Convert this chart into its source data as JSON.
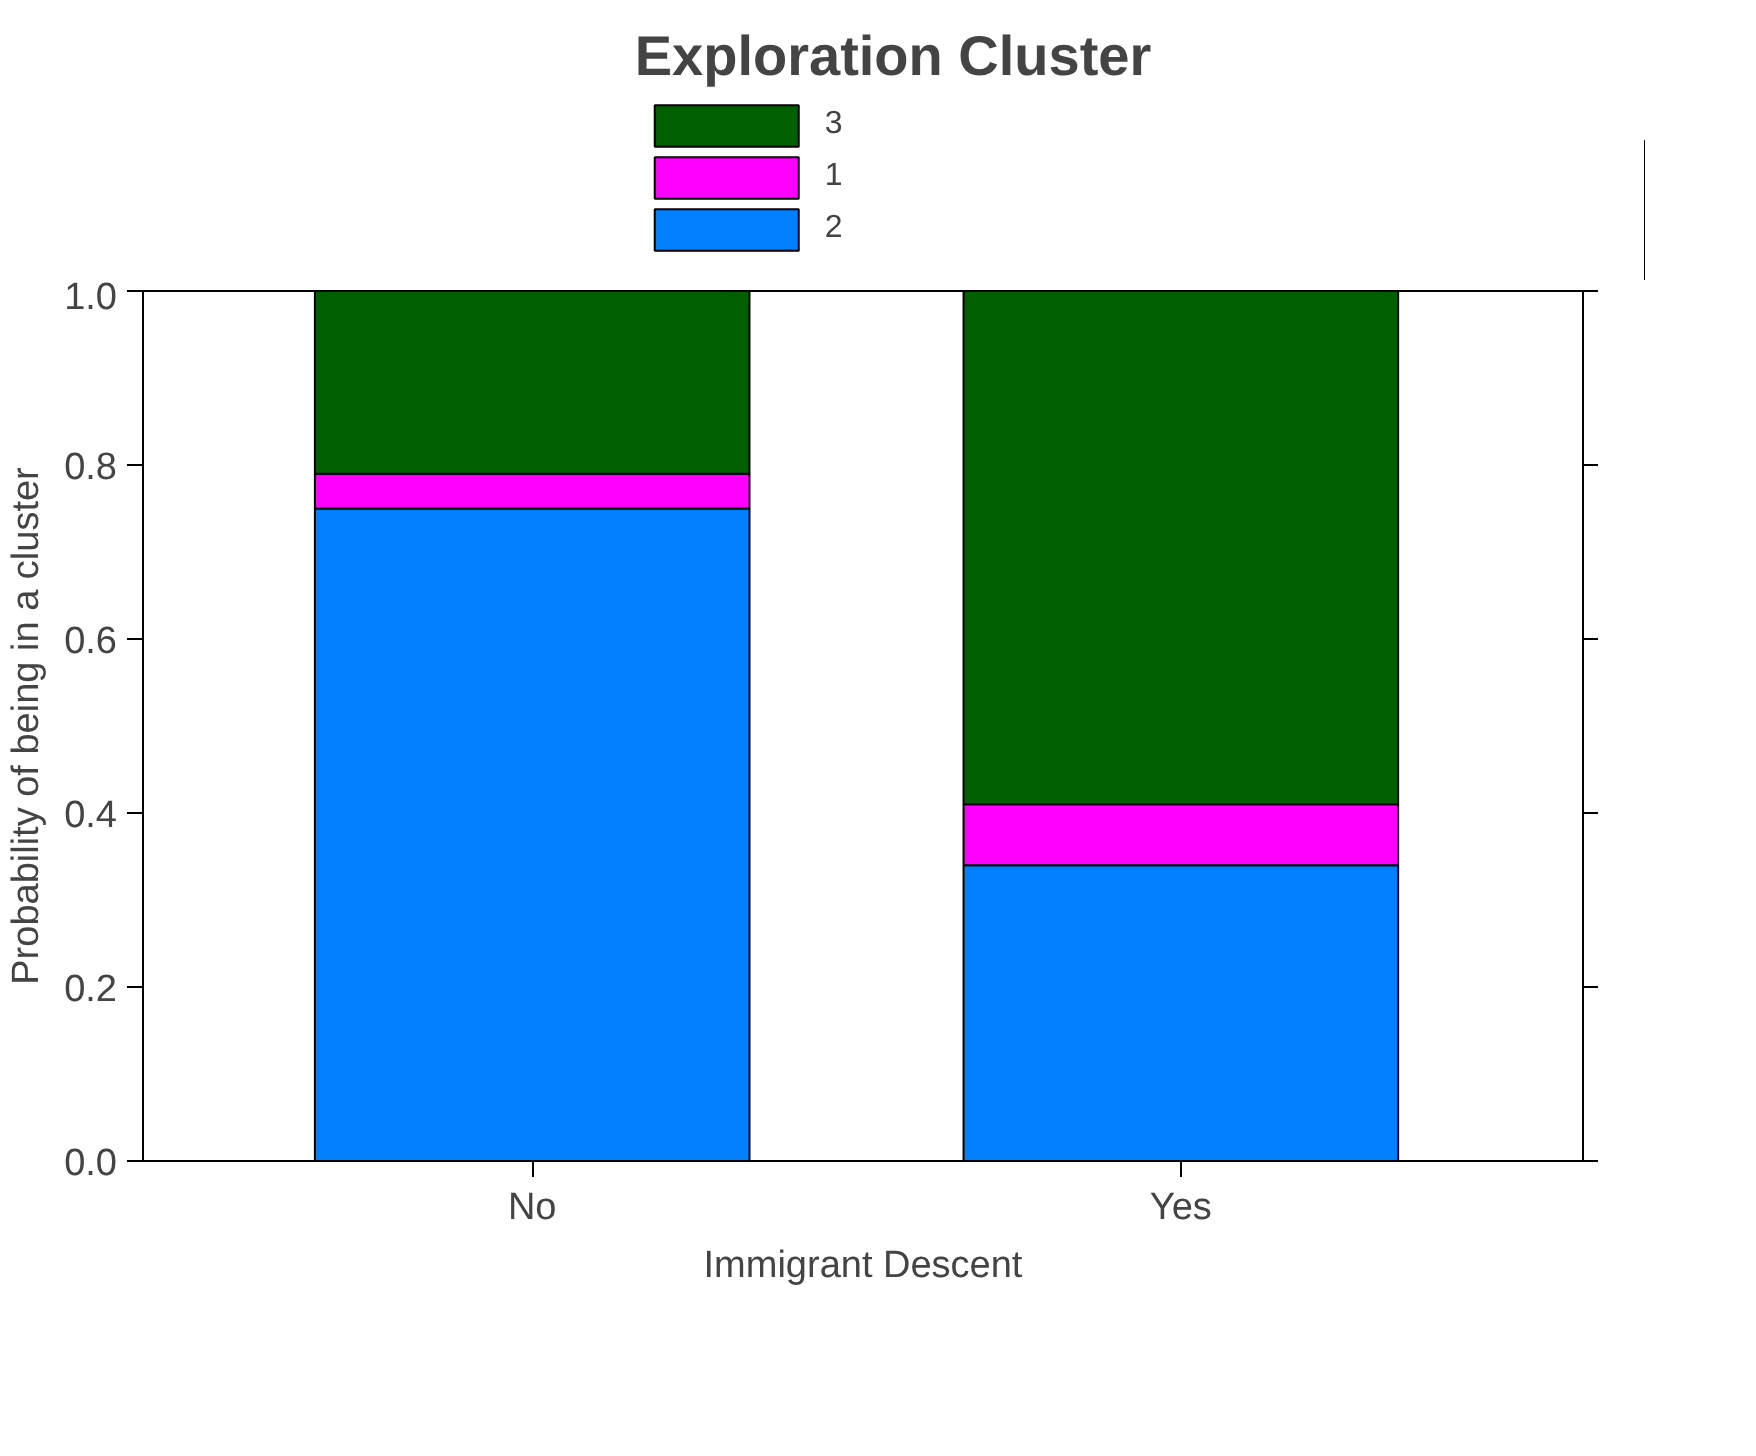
{
  "chart_data": {
    "type": "bar",
    "stacked": true,
    "legend_title": "Exploration Cluster",
    "xlabel": "Immigrant Descent",
    "ylabel": "Probability of being in a cluster",
    "categories": [
      "No",
      "Yes"
    ],
    "series": [
      {
        "name": "2",
        "color": "#0080ff",
        "values": [
          0.75,
          0.34
        ]
      },
      {
        "name": "1",
        "color": "#ff00ff",
        "values": [
          0.04,
          0.07
        ]
      },
      {
        "name": "3",
        "color": "#006000",
        "values": [
          0.21,
          0.59
        ]
      }
    ],
    "ylim": [
      0,
      1
    ],
    "yticks": [
      {
        "value": 0,
        "label": "0.0"
      },
      {
        "value": 0.2,
        "label": "0.2"
      },
      {
        "value": 0.4,
        "label": "0.4"
      },
      {
        "value": 0.6,
        "label": "0.6"
      },
      {
        "value": 0.8,
        "label": "0.8"
      },
      {
        "value": 1,
        "label": "1.0"
      }
    ],
    "legend": "top",
    "grid": false
  }
}
